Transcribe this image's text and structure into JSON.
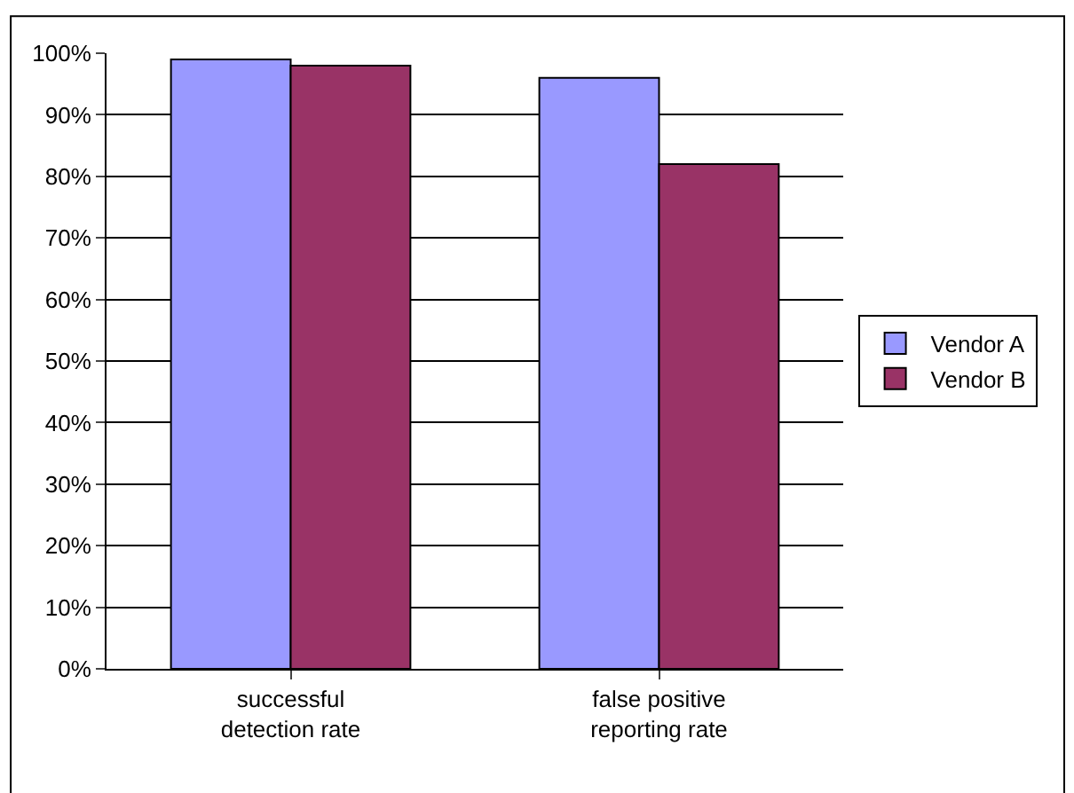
{
  "chart_data": {
    "type": "bar",
    "categories": [
      "successful\ndetection rate",
      "false positive\nreporting rate"
    ],
    "series": [
      {
        "name": "Vendor A",
        "color": "#9999ff",
        "values": [
          99,
          96
        ]
      },
      {
        "name": "Vendor B",
        "color": "#993366",
        "values": [
          98,
          82
        ]
      }
    ],
    "ylim": [
      0,
      100
    ],
    "yticks": [
      {
        "value": 0,
        "label": "0%"
      },
      {
        "value": 10,
        "label": "10%"
      },
      {
        "value": 20,
        "label": "20%"
      },
      {
        "value": 30,
        "label": "30%"
      },
      {
        "value": 40,
        "label": "40%"
      },
      {
        "value": 50,
        "label": "50%"
      },
      {
        "value": 60,
        "label": "60%"
      },
      {
        "value": 70,
        "label": "70%"
      },
      {
        "value": 80,
        "label": "80%"
      },
      {
        "value": 90,
        "label": "90%"
      },
      {
        "value": 100,
        "label": "100%"
      }
    ],
    "grid": "y",
    "legend": "right"
  }
}
